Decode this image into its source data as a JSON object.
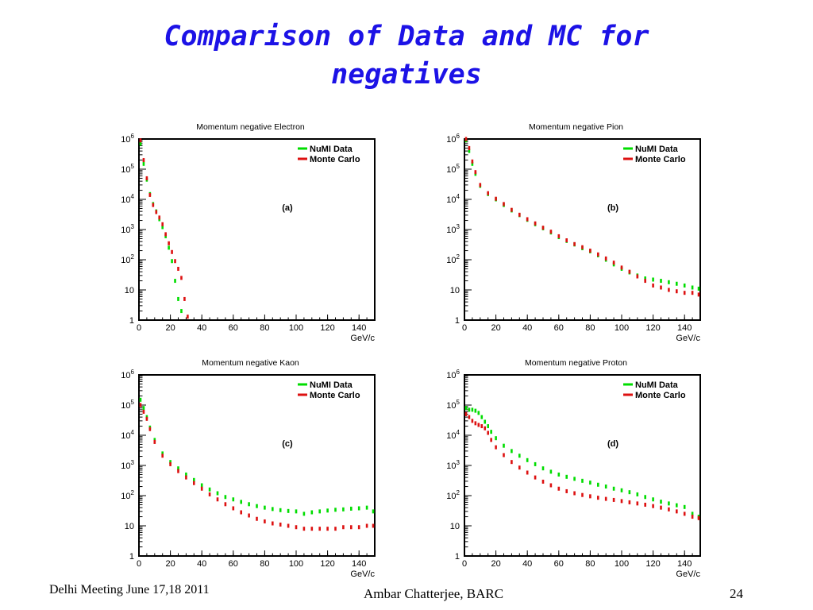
{
  "slide": {
    "title_line1": "Comparison of Data and MC for",
    "title_line2": "negatives",
    "footer_left": "Delhi Meeting June 17,18 2011",
    "footer_center": "Ambar Chatterjee, BARC",
    "page_number": "24"
  },
  "colors": {
    "data": "#00dd00",
    "mc": "#dd1111",
    "title": "#1c12e6"
  },
  "chart_data": [
    {
      "type": "scatter",
      "title": "Momentum  negative Electron",
      "xlabel": "GeV/c",
      "xlim": [
        0,
        150
      ],
      "y_scale": "log",
      "ylim": [
        1,
        1000000
      ],
      "xticks": [
        "0",
        "20",
        "40",
        "60",
        "80",
        "100",
        "120",
        "140"
      ],
      "yticks": [
        "1",
        "10",
        "10^2",
        "10^3",
        "10^4",
        "10^5",
        "10^6"
      ],
      "panel_label": "(a)",
      "legend": "top-right",
      "series": [
        {
          "name": "NuMI Data",
          "points": [
            [
              1,
              700000
            ],
            [
              3,
              150000
            ],
            [
              5,
              45000
            ],
            [
              7,
              15000
            ],
            [
              9,
              7000
            ],
            [
              11,
              4000
            ],
            [
              13,
              2200
            ],
            [
              15,
              1200
            ],
            [
              17,
              600
            ],
            [
              19,
              250
            ],
            [
              21,
              90
            ],
            [
              23,
              20
            ],
            [
              25,
              5
            ],
            [
              27,
              2
            ]
          ]
        },
        {
          "name": "Monte Carlo",
          "points": [
            [
              1,
              900000
            ],
            [
              3,
              200000
            ],
            [
              5,
              50000
            ],
            [
              7,
              14000
            ],
            [
              9,
              6500
            ],
            [
              11,
              3800
            ],
            [
              13,
              2500
            ],
            [
              15,
              1500
            ],
            [
              17,
              700
            ],
            [
              19,
              350
            ],
            [
              21,
              180
            ],
            [
              23,
              90
            ],
            [
              25,
              50
            ],
            [
              27,
              25
            ],
            [
              29,
              5
            ],
            [
              31,
              1.3
            ]
          ]
        }
      ]
    },
    {
      "type": "scatter",
      "title": "Momentum  negative Pion",
      "xlabel": "GeV/c",
      "xlim": [
        0,
        150
      ],
      "y_scale": "log",
      "ylim": [
        1,
        1000000
      ],
      "xticks": [
        "0",
        "20",
        "40",
        "60",
        "80",
        "100",
        "120",
        "140"
      ],
      "yticks": [
        "1",
        "10",
        "10^2",
        "10^3",
        "10^4",
        "10^5",
        "10^6"
      ],
      "panel_label": "(b)",
      "legend": "top-right",
      "series": [
        {
          "name": "NuMI Data",
          "points": [
            [
              1,
              900000
            ],
            [
              3,
              400000
            ],
            [
              5,
              150000
            ],
            [
              7,
              70000
            ],
            [
              10,
              28000
            ],
            [
              15,
              15000
            ],
            [
              20,
              10000
            ],
            [
              25,
              6500
            ],
            [
              30,
              4300
            ],
            [
              35,
              3000
            ],
            [
              40,
              2100
            ],
            [
              45,
              1500
            ],
            [
              50,
              1100
            ],
            [
              55,
              800
            ],
            [
              60,
              560
            ],
            [
              65,
              420
            ],
            [
              70,
              320
            ],
            [
              75,
              240
            ],
            [
              80,
              190
            ],
            [
              85,
              140
            ],
            [
              90,
              100
            ],
            [
              95,
              70
            ],
            [
              100,
              50
            ],
            [
              105,
              38
            ],
            [
              110,
              30
            ],
            [
              115,
              24
            ],
            [
              120,
              22
            ],
            [
              125,
              20
            ],
            [
              130,
              18
            ],
            [
              135,
              16
            ],
            [
              140,
              14
            ],
            [
              145,
              12
            ],
            [
              149,
              11
            ]
          ]
        },
        {
          "name": "Monte Carlo",
          "points": [
            [
              1,
              1000000
            ],
            [
              3,
              500000
            ],
            [
              5,
              180000
            ],
            [
              7,
              80000
            ],
            [
              10,
              30000
            ],
            [
              15,
              16000
            ],
            [
              20,
              10500
            ],
            [
              25,
              7000
            ],
            [
              30,
              4500
            ],
            [
              35,
              3100
            ],
            [
              40,
              2200
            ],
            [
              45,
              1600
            ],
            [
              50,
              1150
            ],
            [
              55,
              850
            ],
            [
              60,
              600
            ],
            [
              65,
              440
            ],
            [
              70,
              330
            ],
            [
              75,
              260
            ],
            [
              80,
              200
            ],
            [
              85,
              150
            ],
            [
              90,
              110
            ],
            [
              95,
              80
            ],
            [
              100,
              55
            ],
            [
              105,
              40
            ],
            [
              110,
              28
            ],
            [
              115,
              20
            ],
            [
              120,
              14
            ],
            [
              125,
              12
            ],
            [
              130,
              10
            ],
            [
              135,
              9
            ],
            [
              140,
              8
            ],
            [
              145,
              8
            ],
            [
              149,
              7
            ]
          ]
        }
      ]
    },
    {
      "type": "scatter",
      "title": "Momentum  negative Kaon",
      "xlabel": "GeV/c",
      "xlim": [
        0,
        150
      ],
      "y_scale": "log",
      "ylim": [
        1,
        1000000
      ],
      "xticks": [
        "0",
        "20",
        "40",
        "60",
        "80",
        "100",
        "120",
        "140"
      ],
      "yticks": [
        "1",
        "10",
        "10^2",
        "10^3",
        "10^4",
        "10^5",
        "10^6"
      ],
      "panel_label": "(c)",
      "legend": "top-right",
      "series": [
        {
          "name": "NuMI Data",
          "points": [
            [
              1,
              150000
            ],
            [
              3,
              80000
            ],
            [
              5,
              40000
            ],
            [
              7,
              18000
            ],
            [
              10,
              7000
            ],
            [
              15,
              2500
            ],
            [
              20,
              1300
            ],
            [
              25,
              800
            ],
            [
              30,
              500
            ],
            [
              35,
              330
            ],
            [
              40,
              220
            ],
            [
              45,
              160
            ],
            [
              50,
              120
            ],
            [
              55,
              90
            ],
            [
              60,
              75
            ],
            [
              65,
              62
            ],
            [
              70,
              52
            ],
            [
              75,
              45
            ],
            [
              80,
              40
            ],
            [
              85,
              36
            ],
            [
              90,
              33
            ],
            [
              95,
              31
            ],
            [
              100,
              30
            ],
            [
              105,
              25
            ],
            [
              110,
              28
            ],
            [
              115,
              30
            ],
            [
              120,
              32
            ],
            [
              125,
              34
            ],
            [
              130,
              35
            ],
            [
              135,
              37
            ],
            [
              140,
              38
            ],
            [
              145,
              40
            ],
            [
              149,
              30
            ]
          ]
        },
        {
          "name": "Monte Carlo",
          "points": [
            [
              1,
              100000
            ],
            [
              3,
              60000
            ],
            [
              5,
              35000
            ],
            [
              7,
              16000
            ],
            [
              10,
              6000
            ],
            [
              15,
              2100
            ],
            [
              20,
              1100
            ],
            [
              25,
              650
            ],
            [
              30,
              400
            ],
            [
              35,
              260
            ],
            [
              40,
              170
            ],
            [
              45,
              110
            ],
            [
              50,
              75
            ],
            [
              55,
              52
            ],
            [
              60,
              38
            ],
            [
              65,
              28
            ],
            [
              70,
              22
            ],
            [
              75,
              17
            ],
            [
              80,
              14
            ],
            [
              85,
              12
            ],
            [
              90,
              11
            ],
            [
              95,
              10
            ],
            [
              100,
              9
            ],
            [
              105,
              8
            ],
            [
              110,
              8
            ],
            [
              115,
              8
            ],
            [
              120,
              8
            ],
            [
              125,
              8
            ],
            [
              130,
              9
            ],
            [
              135,
              9
            ],
            [
              140,
              9
            ],
            [
              145,
              10
            ],
            [
              149,
              10
            ]
          ]
        }
      ]
    },
    {
      "type": "scatter",
      "title": "Momentum  negative Proton",
      "xlabel": "GeV/c",
      "xlim": [
        0,
        150
      ],
      "y_scale": "log",
      "ylim": [
        1,
        1000000
      ],
      "xticks": [
        "0",
        "20",
        "40",
        "60",
        "80",
        "100",
        "120",
        "140"
      ],
      "yticks": [
        "1",
        "10",
        "10^2",
        "10^3",
        "10^4",
        "10^5",
        "10^6"
      ],
      "panel_label": "(d)",
      "legend": "top-right",
      "series": [
        {
          "name": "NuMI Data",
          "points": [
            [
              1,
              80000
            ],
            [
              3,
              70000
            ],
            [
              5,
              70000
            ],
            [
              7,
              65000
            ],
            [
              9,
              55000
            ],
            [
              11,
              40000
            ],
            [
              13,
              28000
            ],
            [
              15,
              20000
            ],
            [
              17,
              13000
            ],
            [
              20,
              8000
            ],
            [
              25,
              4500
            ],
            [
              30,
              3000
            ],
            [
              35,
              2100
            ],
            [
              40,
              1500
            ],
            [
              45,
              1100
            ],
            [
              50,
              800
            ],
            [
              55,
              620
            ],
            [
              60,
              500
            ],
            [
              65,
              420
            ],
            [
              70,
              360
            ],
            [
              75,
              310
            ],
            [
              80,
              270
            ],
            [
              85,
              230
            ],
            [
              90,
              200
            ],
            [
              95,
              170
            ],
            [
              100,
              150
            ],
            [
              105,
              130
            ],
            [
              110,
              110
            ],
            [
              115,
              90
            ],
            [
              120,
              75
            ],
            [
              125,
              63
            ],
            [
              130,
              55
            ],
            [
              135,
              48
            ],
            [
              140,
              42
            ],
            [
              145,
              25
            ],
            [
              149,
              20
            ]
          ]
        },
        {
          "name": "Monte Carlo",
          "points": [
            [
              1,
              50000
            ],
            [
              3,
              40000
            ],
            [
              5,
              30000
            ],
            [
              7,
              25000
            ],
            [
              9,
              22000
            ],
            [
              11,
              20000
            ],
            [
              13,
              17000
            ],
            [
              15,
              12000
            ],
            [
              17,
              7000
            ],
            [
              20,
              4000
            ],
            [
              25,
              2200
            ],
            [
              30,
              1300
            ],
            [
              35,
              850
            ],
            [
              40,
              580
            ],
            [
              45,
              400
            ],
            [
              50,
              290
            ],
            [
              55,
              220
            ],
            [
              60,
              170
            ],
            [
              65,
              140
            ],
            [
              70,
              120
            ],
            [
              75,
              105
            ],
            [
              80,
              95
            ],
            [
              85,
              85
            ],
            [
              90,
              78
            ],
            [
              95,
              72
            ],
            [
              100,
              66
            ],
            [
              105,
              60
            ],
            [
              110,
              55
            ],
            [
              115,
              50
            ],
            [
              120,
              45
            ],
            [
              125,
              40
            ],
            [
              130,
              35
            ],
            [
              135,
              30
            ],
            [
              140,
              25
            ],
            [
              145,
              20
            ],
            [
              149,
              18
            ]
          ]
        }
      ]
    }
  ]
}
